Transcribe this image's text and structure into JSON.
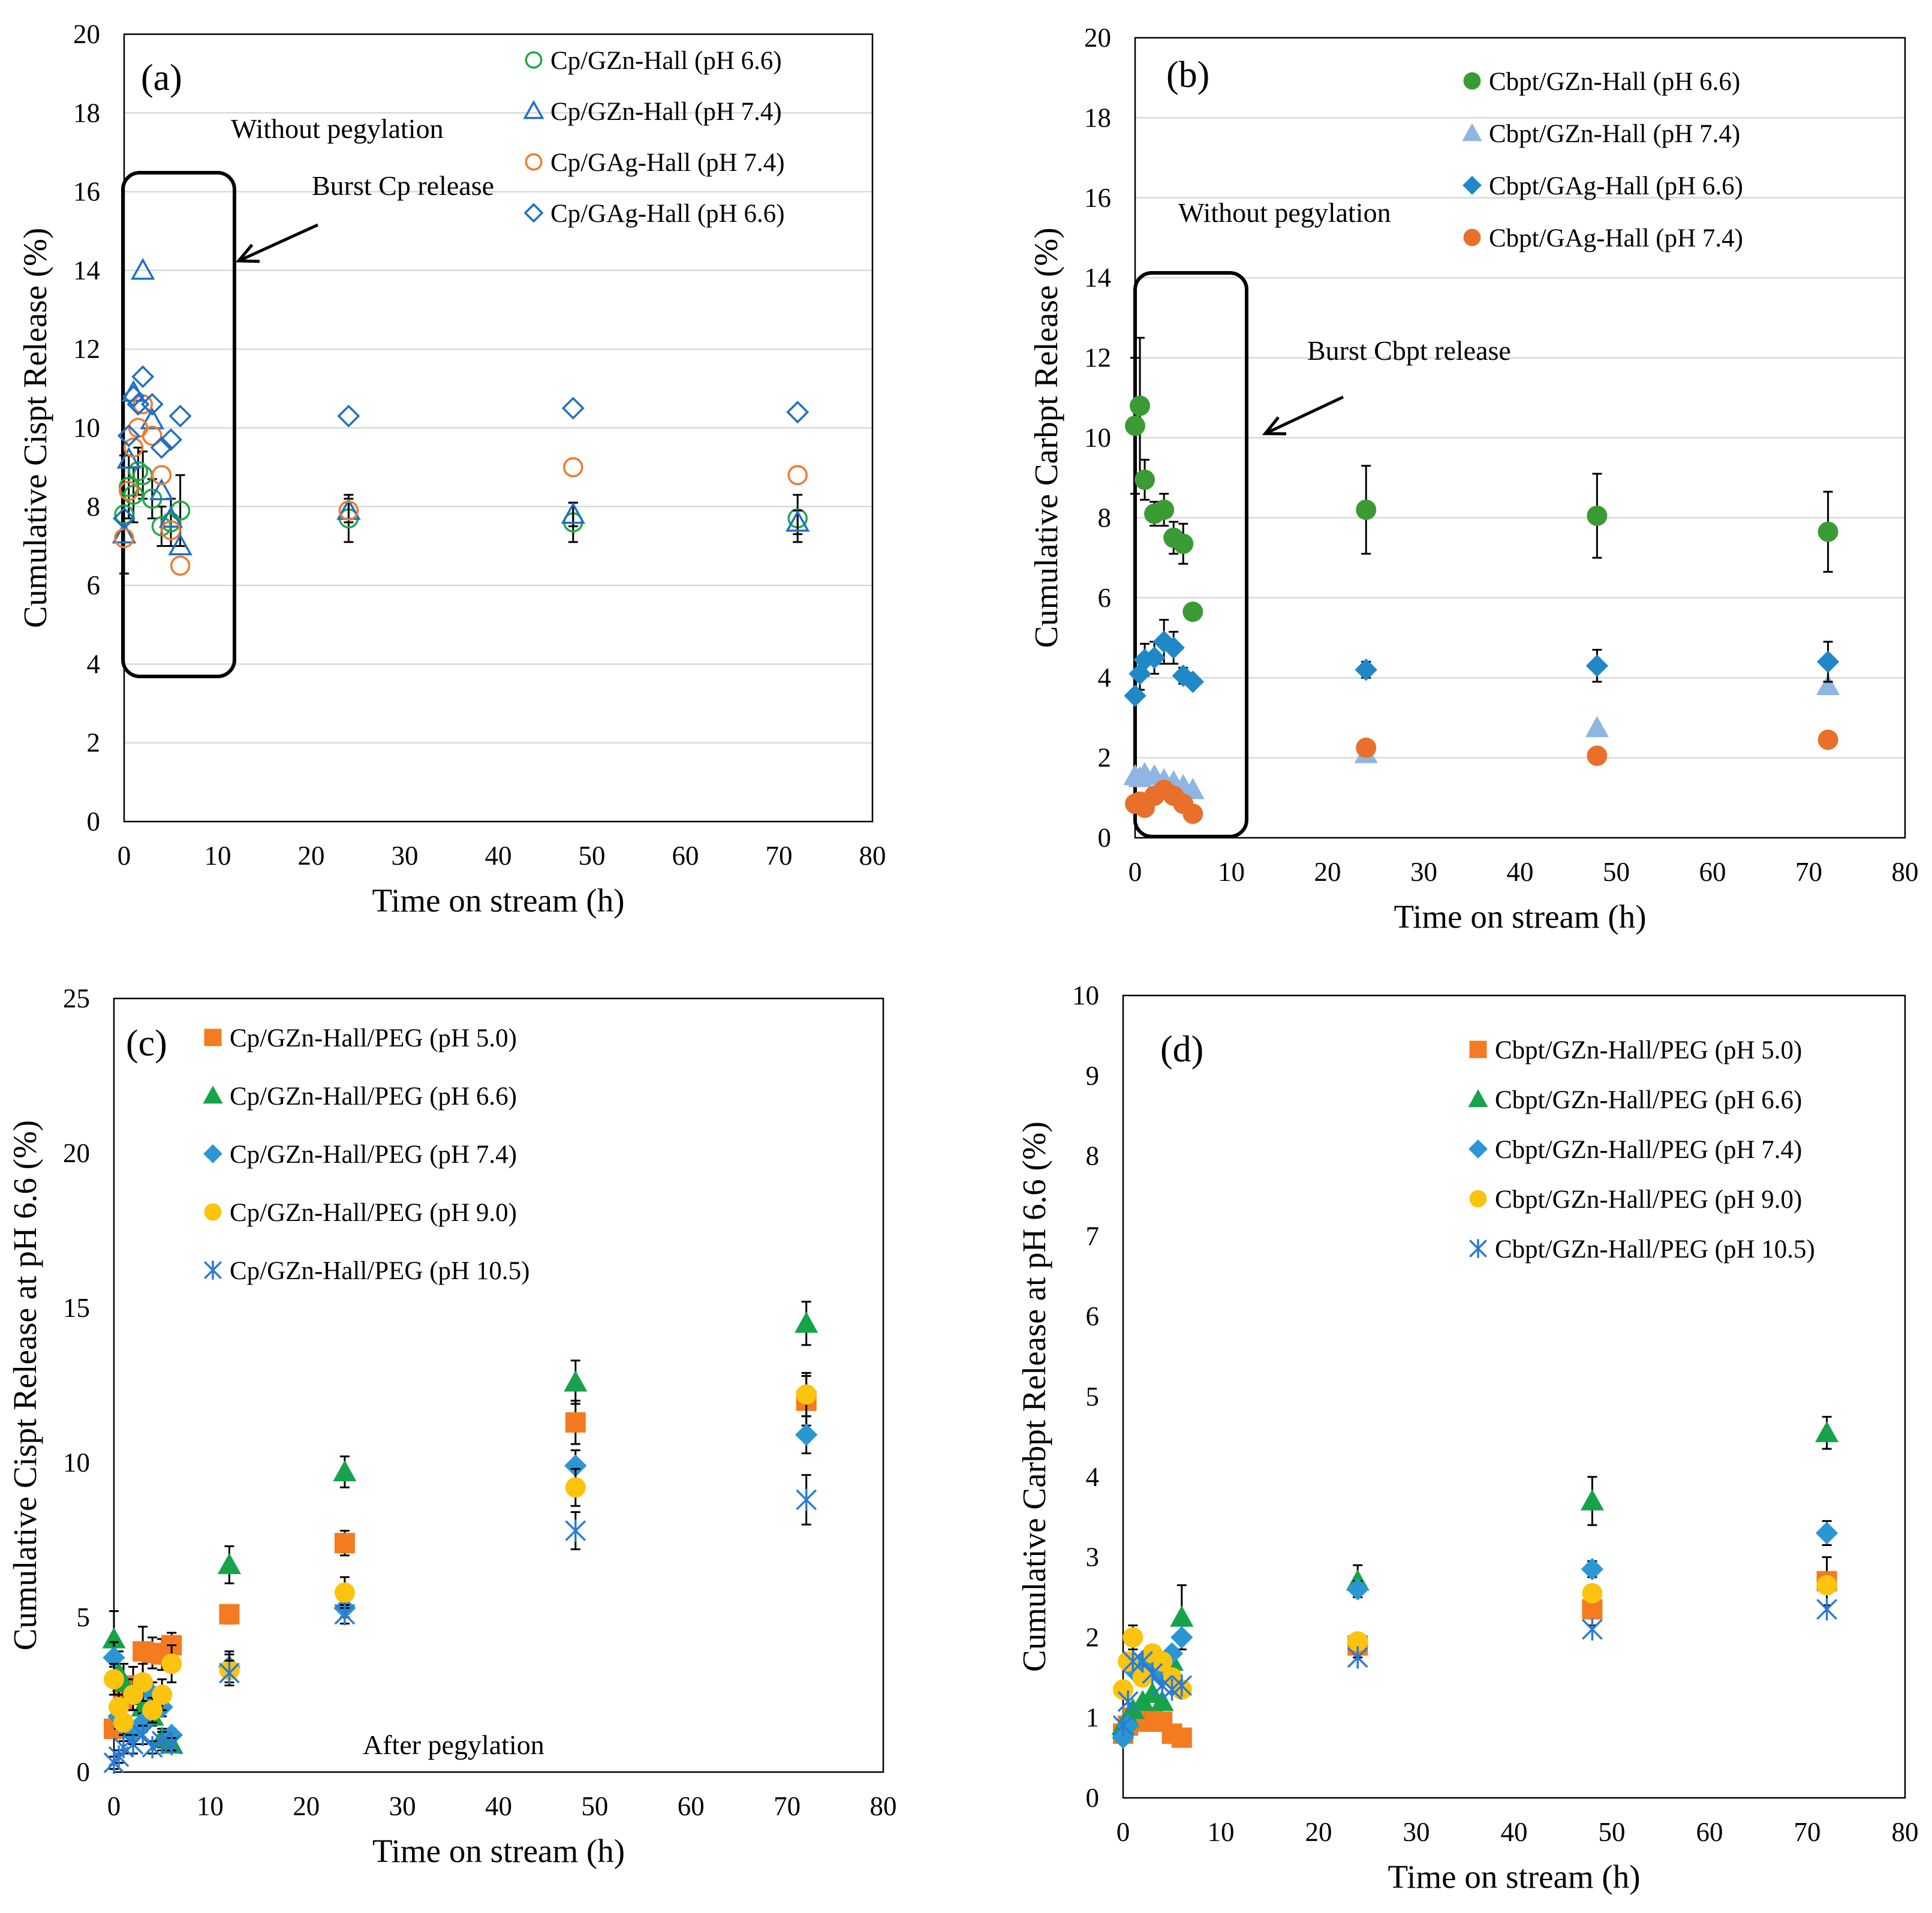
{
  "chart_data": [
    {
      "panel": "a",
      "type": "scatter",
      "panel_label": "(a)",
      "xlabel": "Time on stream (h)",
      "ylabel": "Cumulative Cispt Release (%)",
      "xlim": [
        0,
        80
      ],
      "ylim": [
        0,
        20
      ],
      "xticks": [
        0,
        10,
        20,
        30,
        40,
        50,
        60,
        70,
        80
      ],
      "yticks": [
        0,
        2,
        4,
        6,
        8,
        10,
        12,
        14,
        16,
        18,
        20
      ],
      "grid": "horizontal",
      "legend_position": "top-right",
      "annotations": {
        "title": "Without pegylation",
        "burst": "Burst Cp release"
      },
      "series": [
        {
          "name": "Cp/GZn-Hall (pH 6.6)",
          "marker": "circle-open",
          "color": "#22a84a",
          "x": [
            0,
            0.5,
            1,
            1.5,
            2,
            3,
            4,
            5,
            6,
            24,
            48,
            72
          ],
          "y": [
            7.8,
            8.5,
            8.3,
            8.9,
            8.8,
            8.2,
            7.5,
            7.6,
            7.9,
            7.7,
            7.6,
            7.7
          ],
          "err": [
            1.5,
            0.8,
            0.7,
            0.6,
            0.6,
            0.5,
            0.5,
            0.6,
            0.9,
            0.6,
            0.5,
            0.6
          ]
        },
        {
          "name": "Cp/GZn-Hall (pH 7.4)",
          "marker": "triangle-open",
          "color": "#1f6fc5",
          "x": [
            0,
            0.5,
            1,
            2,
            3,
            4,
            5,
            6,
            24,
            48,
            72
          ],
          "y": [
            7.3,
            9.2,
            10.9,
            14.0,
            10.2,
            8.4,
            7.7,
            7.0,
            7.9,
            7.8,
            7.6
          ],
          "err": [
            0,
            0,
            0,
            0,
            0,
            0,
            0,
            0,
            0.3,
            0.3,
            0.3
          ]
        },
        {
          "name": "Cp/GAg-Hall (pH 7.4)",
          "marker": "circle-open",
          "color": "#ef7a2f",
          "x": [
            0,
            0.5,
            1,
            1.5,
            2,
            3,
            4,
            5,
            6,
            24,
            48,
            72
          ],
          "y": [
            7.2,
            8.4,
            9.5,
            10.0,
            10.6,
            9.8,
            8.8,
            7.4,
            6.5,
            7.9,
            9.0,
            8.8
          ],
          "err": [
            0,
            0,
            0,
            0,
            0,
            0,
            0,
            0,
            0,
            0,
            0,
            0
          ]
        },
        {
          "name": "Cp/GAg-Hall (pH 6.6)",
          "marker": "diamond-open",
          "color": "#1f6fc5",
          "x": [
            0,
            0.5,
            1,
            1.5,
            2,
            3,
            4,
            5,
            6,
            24,
            48,
            72
          ],
          "y": [
            7.7,
            9.8,
            10.8,
            10.6,
            11.3,
            10.6,
            9.5,
            9.7,
            10.3,
            10.3,
            10.5,
            10.4
          ],
          "err": [
            0,
            0,
            0,
            0,
            0,
            0,
            0,
            0,
            0,
            0,
            0,
            0
          ]
        }
      ]
    },
    {
      "panel": "b",
      "type": "scatter",
      "panel_label": "(b)",
      "xlabel": "Time on stream (h)",
      "ylabel": "Cumulative Carbpt Release (%)",
      "xlim": [
        0,
        80
      ],
      "ylim": [
        0,
        20
      ],
      "xticks": [
        0,
        10,
        20,
        30,
        40,
        50,
        60,
        70,
        80
      ],
      "yticks": [
        0,
        2,
        4,
        6,
        8,
        10,
        12,
        14,
        16,
        18,
        20
      ],
      "grid": "horizontal",
      "legend_position": "top-right",
      "annotations": {
        "title": "Without pegylation",
        "burst": "Burst Cbpt release"
      },
      "series": [
        {
          "name": "Cbpt/GZn-Hall (pH 6.6)",
          "marker": "circle",
          "color": "#3a9b35",
          "x": [
            0,
            0.5,
            1,
            2,
            3,
            4,
            5,
            6,
            24,
            48,
            72
          ],
          "y": [
            10.3,
            10.8,
            8.95,
            8.1,
            8.2,
            7.5,
            7.35,
            5.65,
            8.2,
            8.05,
            7.65
          ],
          "err": [
            1.7,
            1.7,
            0.5,
            0.3,
            0.4,
            0.4,
            0.5,
            0,
            1.1,
            1.05,
            1.0
          ]
        },
        {
          "name": "Cbpt/GZn-Hall (pH 7.4)",
          "marker": "triangle",
          "color": "#8fb5e2",
          "x": [
            0,
            0.5,
            1,
            2,
            3,
            4,
            5,
            6,
            24,
            48,
            72
          ],
          "y": [
            1.55,
            1.5,
            1.6,
            1.55,
            1.45,
            1.4,
            1.3,
            1.2,
            2.1,
            2.75,
            3.8
          ],
          "err": [
            0,
            0,
            0,
            0,
            0,
            0,
            0,
            0,
            0,
            0,
            0
          ]
        },
        {
          "name": "Cbpt/GAg-Hall (pH 6.6)",
          "marker": "diamond",
          "color": "#2188c8",
          "x": [
            0,
            0.5,
            1,
            2,
            3,
            4,
            5,
            6,
            24,
            48,
            72
          ],
          "y": [
            3.55,
            4.1,
            4.45,
            4.5,
            4.9,
            4.75,
            4.05,
            3.9,
            4.2,
            4.3,
            4.4
          ],
          "err": [
            0,
            0.4,
            0.4,
            0.4,
            0.55,
            0.4,
            0.2,
            0,
            0.2,
            0.4,
            0.5
          ]
        },
        {
          "name": "Cbpt/GAg-Hall (pH 7.4)",
          "marker": "circle",
          "color": "#e8702a",
          "x": [
            0,
            0.5,
            1,
            2,
            3,
            4,
            5,
            6,
            24,
            48,
            72
          ],
          "y": [
            0.85,
            0.9,
            0.75,
            1.05,
            1.2,
            1.05,
            0.85,
            0.6,
            2.25,
            2.05,
            2.45
          ],
          "err": [
            0,
            0,
            0,
            0,
            0,
            0,
            0,
            0,
            0,
            0,
            0
          ]
        }
      ]
    },
    {
      "panel": "c",
      "type": "scatter",
      "panel_label": "(c)",
      "xlabel": "Time on stream (h)",
      "ylabel": "Cumulative Cispt Release at pH 6.6 (%)",
      "xlim": [
        0,
        80
      ],
      "ylim": [
        0,
        25
      ],
      "xticks": [
        0,
        10,
        20,
        30,
        40,
        50,
        60,
        70,
        80
      ],
      "yticks": [
        0,
        5,
        10,
        15,
        20,
        25
      ],
      "grid": "none",
      "legend_position": "top-left",
      "annotations": {
        "title": "After pegylation"
      },
      "series": [
        {
          "name": "Cp/GZn-Hall/PEG (pH 5.0)",
          "marker": "square",
          "color": "#f47b20",
          "x": [
            0,
            0.5,
            1,
            2,
            3,
            4,
            5,
            6,
            12,
            24,
            48,
            72
          ],
          "y": [
            1.4,
            1.5,
            2.3,
            2.8,
            3.9,
            3.85,
            3.8,
            4.1,
            5.1,
            7.4,
            11.3,
            12.0
          ],
          "err": [
            0.3,
            0.4,
            0.5,
            0.6,
            0.8,
            0.5,
            0.5,
            0.4,
            0.3,
            0.4,
            0.7,
            0.8
          ]
        },
        {
          "name": "Cp/GZn-Hall/PEG (pH 6.6)",
          "marker": "triangle",
          "color": "#16a34a",
          "x": [
            0,
            0.5,
            1,
            2,
            3,
            4,
            5,
            6,
            12,
            24,
            48,
            72
          ],
          "y": [
            4.3,
            3.2,
            2.9,
            2.5,
            2.1,
            1.8,
            1.1,
            0.9,
            6.7,
            9.7,
            12.6,
            14.5
          ],
          "err": [
            0.9,
            0.7,
            0.6,
            0.5,
            0.4,
            0.3,
            0.3,
            0.2,
            0.6,
            0.5,
            0.7,
            0.7
          ]
        },
        {
          "name": "Cp/GZn-Hall/PEG (pH 7.4)",
          "marker": "diamond",
          "color": "#2b96d4",
          "x": [
            0,
            0.5,
            1,
            2,
            3,
            4,
            5,
            6,
            12,
            24,
            48,
            72
          ],
          "y": [
            3.7,
            1.8,
            1.5,
            1.2,
            1.6,
            2.5,
            2.1,
            1.2,
            3.4,
            5.3,
            9.9,
            10.9
          ],
          "err": [
            0.5,
            0.4,
            0.3,
            0.3,
            0.3,
            0.4,
            0.3,
            0.2,
            0.5,
            0.3,
            0.5,
            0.6
          ]
        },
        {
          "name": "Cp/GZn-Hall/PEG (pH 9.0)",
          "marker": "circle",
          "color": "#fcc30f",
          "x": [
            0,
            0.5,
            1,
            2,
            3,
            4,
            5,
            6,
            12,
            24,
            48,
            72
          ],
          "y": [
            3.0,
            2.1,
            1.6,
            2.5,
            2.9,
            2.0,
            2.5,
            3.5,
            3.3,
            5.8,
            9.2,
            12.2
          ],
          "err": [
            0.5,
            0.4,
            0.4,
            0.5,
            0.6,
            0.4,
            0.5,
            0.6,
            0.5,
            0.5,
            0.6,
            0.7
          ]
        },
        {
          "name": "Cp/GZn-Hall/PEG (pH 10.5)",
          "marker": "asterisk",
          "color": "#2b7bd4",
          "x": [
            0,
            0.5,
            1,
            2,
            3,
            4,
            5,
            6,
            12,
            24,
            48,
            72
          ],
          "y": [
            0.3,
            0.5,
            0.8,
            0.9,
            1.2,
            0.8,
            1.0,
            0.9,
            3.2,
            5.1,
            7.8,
            8.8
          ],
          "err": [
            0.2,
            0.2,
            0.2,
            0.3,
            0.3,
            0.2,
            0.3,
            0.2,
            0.4,
            0.3,
            0.6,
            0.8
          ]
        }
      ]
    },
    {
      "panel": "d",
      "type": "scatter",
      "panel_label": "(d)",
      "xlabel": "Time on stream (h)",
      "ylabel": "Cumulative Carbpt Release at pH 6.6 (%)",
      "xlim": [
        0,
        80
      ],
      "ylim": [
        0,
        10
      ],
      "xticks": [
        0,
        10,
        20,
        30,
        40,
        50,
        60,
        70,
        80
      ],
      "yticks": [
        0,
        1,
        2,
        3,
        4,
        5,
        6,
        7,
        8,
        9,
        10
      ],
      "grid": "none",
      "legend_position": "top-right",
      "series": [
        {
          "name": "Cbpt/GZn-Hall/PEG (pH 5.0)",
          "marker": "square",
          "color": "#f47b20",
          "x": [
            0,
            0.5,
            1,
            2,
            3,
            4,
            5,
            6,
            24,
            48,
            72
          ],
          "y": [
            0.8,
            0.9,
            1.0,
            0.95,
            1.0,
            0.95,
            0.8,
            0.75,
            1.9,
            2.35,
            2.7
          ],
          "err": [
            0,
            0,
            0,
            0,
            0,
            0,
            0,
            0,
            0.15,
            0.2,
            0.3
          ]
        },
        {
          "name": "Cbpt/GZn-Hall/PEG (pH 6.6)",
          "marker": "triangle",
          "color": "#16a34a",
          "x": [
            0,
            0.5,
            1,
            2,
            3,
            4,
            5,
            6,
            24,
            48,
            72
          ],
          "y": [
            0.9,
            1.0,
            1.1,
            1.2,
            1.3,
            1.2,
            1.7,
            2.25,
            2.7,
            3.7,
            4.55
          ],
          "err": [
            0,
            0,
            0,
            0,
            0,
            0,
            0,
            0.4,
            0.2,
            0.3,
            0.2
          ]
        },
        {
          "name": "Cbpt/GZn-Hall/PEG (pH 7.4)",
          "marker": "diamond",
          "color": "#2b96d4",
          "x": [
            0,
            0.5,
            1,
            2,
            3,
            4,
            5,
            6,
            24,
            48,
            72
          ],
          "y": [
            0.75,
            0.9,
            1.6,
            1.7,
            1.6,
            1.5,
            1.8,
            2.0,
            2.6,
            2.85,
            3.3
          ],
          "err": [
            0,
            0,
            0,
            0,
            0,
            0,
            0,
            0,
            0.1,
            0.1,
            0.15
          ]
        },
        {
          "name": "Cbpt/GZn-Hall/PEG (pH 9.0)",
          "marker": "circle",
          "color": "#fcc30f",
          "x": [
            0,
            0.5,
            1,
            2,
            3,
            4,
            5,
            6,
            24,
            48,
            72
          ],
          "y": [
            1.35,
            1.7,
            2.0,
            1.5,
            1.8,
            1.7,
            1.5,
            1.35,
            1.95,
            2.55,
            2.65
          ],
          "err": [
            0,
            0,
            0.15,
            0,
            0,
            0,
            0,
            0,
            0,
            0,
            0
          ]
        },
        {
          "name": "Cbpt/GZn-Hall/PEG (pH 10.5)",
          "marker": "asterisk",
          "color": "#2b7bd4",
          "x": [
            0,
            0.5,
            1,
            2,
            3,
            4,
            5,
            6,
            24,
            48,
            72
          ],
          "y": [
            0.9,
            1.2,
            1.7,
            1.7,
            1.55,
            1.4,
            1.35,
            1.4,
            1.75,
            2.1,
            2.35
          ],
          "err": [
            0,
            0,
            0,
            0,
            0,
            0,
            0,
            0,
            0,
            0,
            0
          ]
        }
      ]
    }
  ]
}
